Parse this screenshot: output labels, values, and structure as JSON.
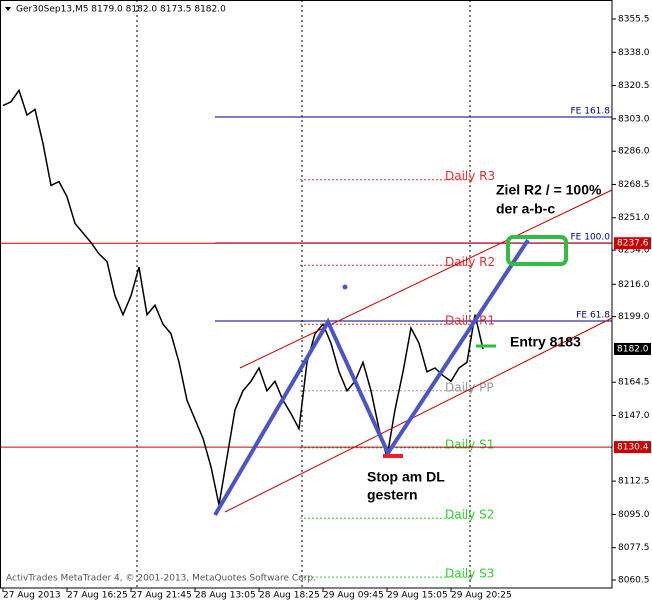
{
  "chart_data": {
    "type": "line",
    "title": "Ger30Sep13,M5  8179.0 8182.0 8173.5 8182.0",
    "watermark": "ActivTrades MetaTrader 4, © 2001-2013, MetaQuotes Software Corp.",
    "categories": [
      "27 Aug 2013",
      null,
      null,
      null,
      null,
      null,
      null,
      null,
      "27 Aug 16:25",
      null,
      null,
      null,
      null,
      null,
      null,
      null,
      "27 Aug 21:45",
      null,
      null,
      null,
      null,
      null,
      null,
      null,
      "28 Aug 13:05",
      null,
      null,
      null,
      null,
      null,
      null,
      null,
      "28 Aug 18:25",
      null,
      null,
      null,
      null,
      null,
      null,
      null,
      "29 Aug 09:45",
      null,
      null,
      null,
      null,
      null,
      null,
      null,
      "29 Aug 15:05",
      null,
      null,
      null,
      null,
      null,
      null,
      null,
      "29 Aug 20:25",
      null,
      null,
      null,
      null
    ],
    "values": [
      8310,
      8312,
      8318,
      8305,
      8308,
      8290,
      8268,
      8270,
      8262,
      8248,
      8243,
      8238,
      8232,
      8228,
      8210,
      8200,
      8210,
      8225,
      8200,
      8205,
      8195,
      8190,
      8175,
      8155,
      8145,
      8135,
      8120,
      8100,
      8125,
      8150,
      8160,
      8165,
      8172,
      8160,
      8165,
      8155,
      8148,
      8140,
      8175,
      8190,
      8195,
      8185,
      8170,
      8160,
      8165,
      8175,
      8160,
      8140,
      8125,
      8150,
      8170,
      8193,
      8185,
      8170,
      8172,
      8168,
      8165,
      8172,
      8175,
      8200,
      8182
    ],
    "color": "#000000",
    "ylim": [
      8056.3,
      8365.5
    ],
    "yticks": [
      8355.5,
      {
        "value": 8338,
        "label": "8338.0"
      },
      8320.5,
      {
        "value": 8303,
        "label": "8303.0"
      },
      {
        "value": 8286,
        "label": "8286.0"
      },
      8268.5,
      {
        "value": 8251,
        "label": "8251.0"
      },
      {
        "value": 8234,
        "label": "8234.0"
      },
      {
        "value": 8216,
        "label": "8216.0"
      },
      {
        "value": 8199,
        "label": "8199.0"
      },
      8164.5,
      {
        "value": 8147,
        "label": "8147.0"
      },
      8112.5,
      {
        "value": 8095,
        "label": "8095.0"
      },
      8077.5,
      8060.5
    ],
    "levels": [
      {
        "name": "FE 161.8",
        "value": 8304,
        "color": "#000080"
      },
      {
        "name": "FE 100.0",
        "value": 8237.7,
        "color": "#000080"
      },
      {
        "name": "FE 61.8",
        "value": 8196.7,
        "color": "#000080"
      }
    ],
    "pivots": [
      {
        "name": "Daily R3",
        "value": 8271,
        "color": "#e03030"
      },
      {
        "name": "Daily R2",
        "value": 8226,
        "color": "#e03030"
      },
      {
        "name": "Daily R1",
        "value": 8195,
        "color": "#e03030"
      },
      {
        "name": "Daily PP",
        "value": 8160,
        "color": "#999999"
      },
      {
        "name": "Daily S1",
        "value": 8130,
        "color": "#33cc33"
      },
      {
        "name": "Daily S2",
        "value": 8093,
        "color": "#33cc33"
      },
      {
        "name": "Daily S3",
        "value": 8062,
        "color": "#33cc33"
      }
    ],
    "price_tags": {
      "values": [
        8237.6,
        8182,
        8130.4
      ],
      "value_labels": [
        "8237.6",
        "8182.0",
        "8130.4"
      ],
      "colors": [
        "#cc0000",
        "#000000",
        "#cc0000"
      ]
    },
    "annotations": [
      "Ziel R2 / = 100%",
      "der a-b-c",
      "Entry 8183",
      "Stop am DL",
      "gestern"
    ]
  }
}
